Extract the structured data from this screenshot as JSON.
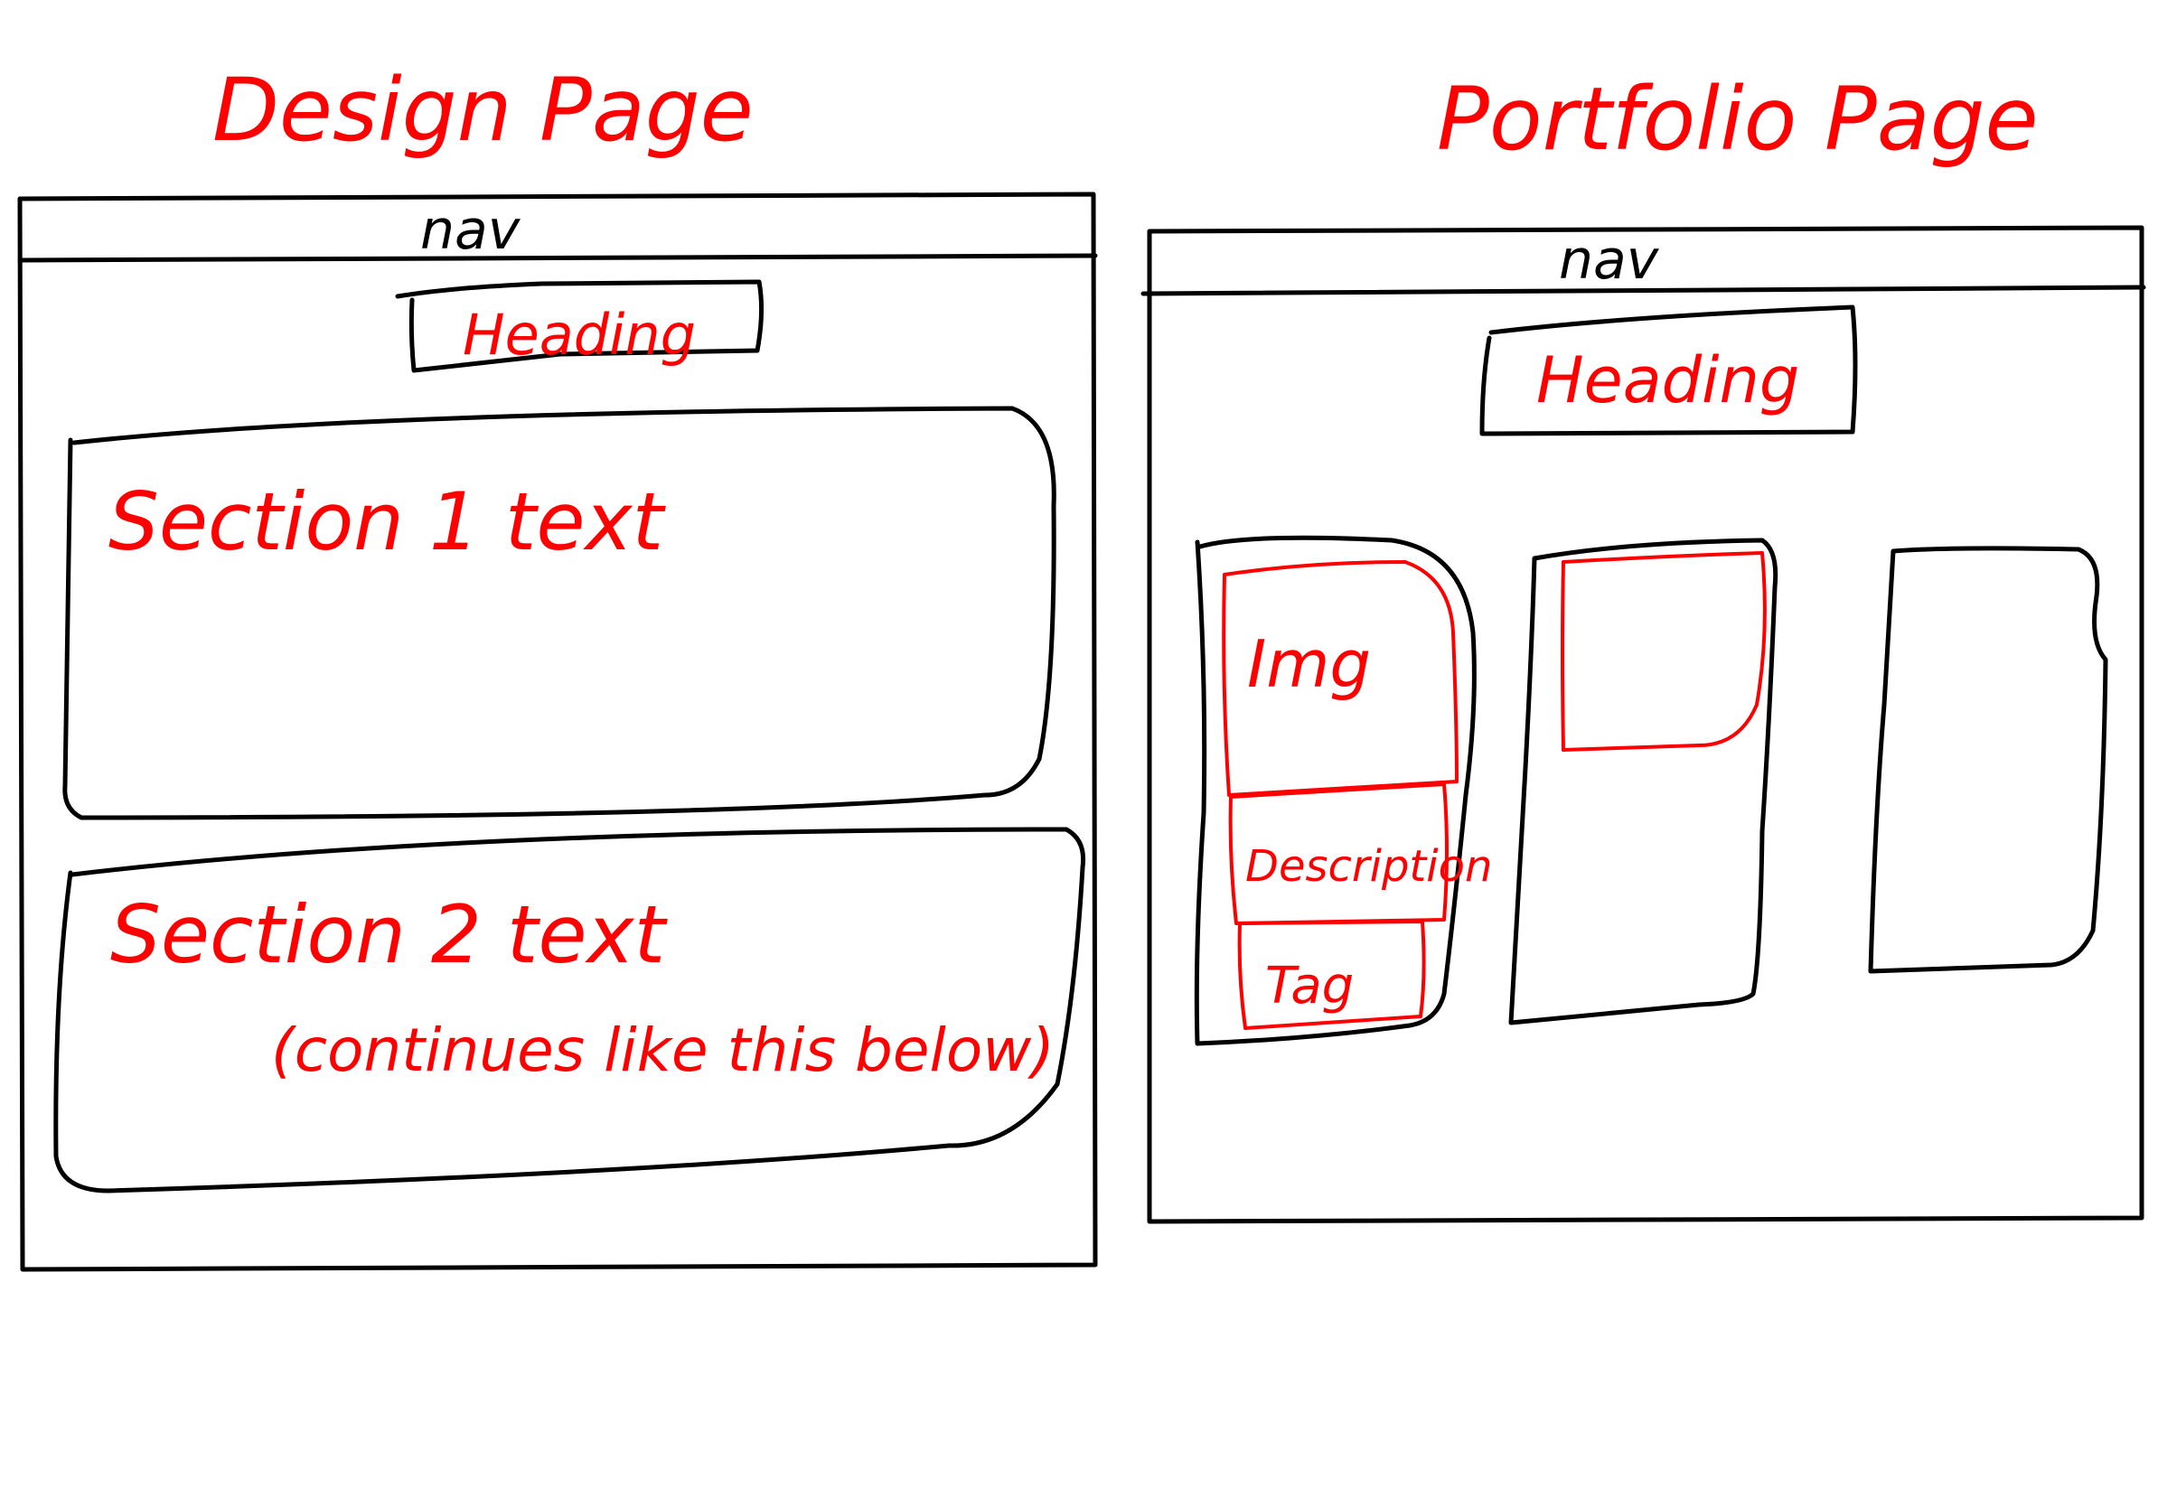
{
  "colors": {
    "ink": "#000000",
    "annotation": "#ff0000",
    "paper": "#ffffff"
  },
  "design_page": {
    "title": "Design Page",
    "nav_label": "nav",
    "heading_label": "Heading",
    "section1_label": "Section 1 text",
    "section2_label": "Section 2 text",
    "section2_note": "(continues like this below)"
  },
  "portfolio_page": {
    "title": "Portfolio Page",
    "nav_label": "nav",
    "heading_label": "Heading",
    "card": {
      "img_label": "Img",
      "description_label": "Description",
      "tag_label": "Tag"
    }
  }
}
